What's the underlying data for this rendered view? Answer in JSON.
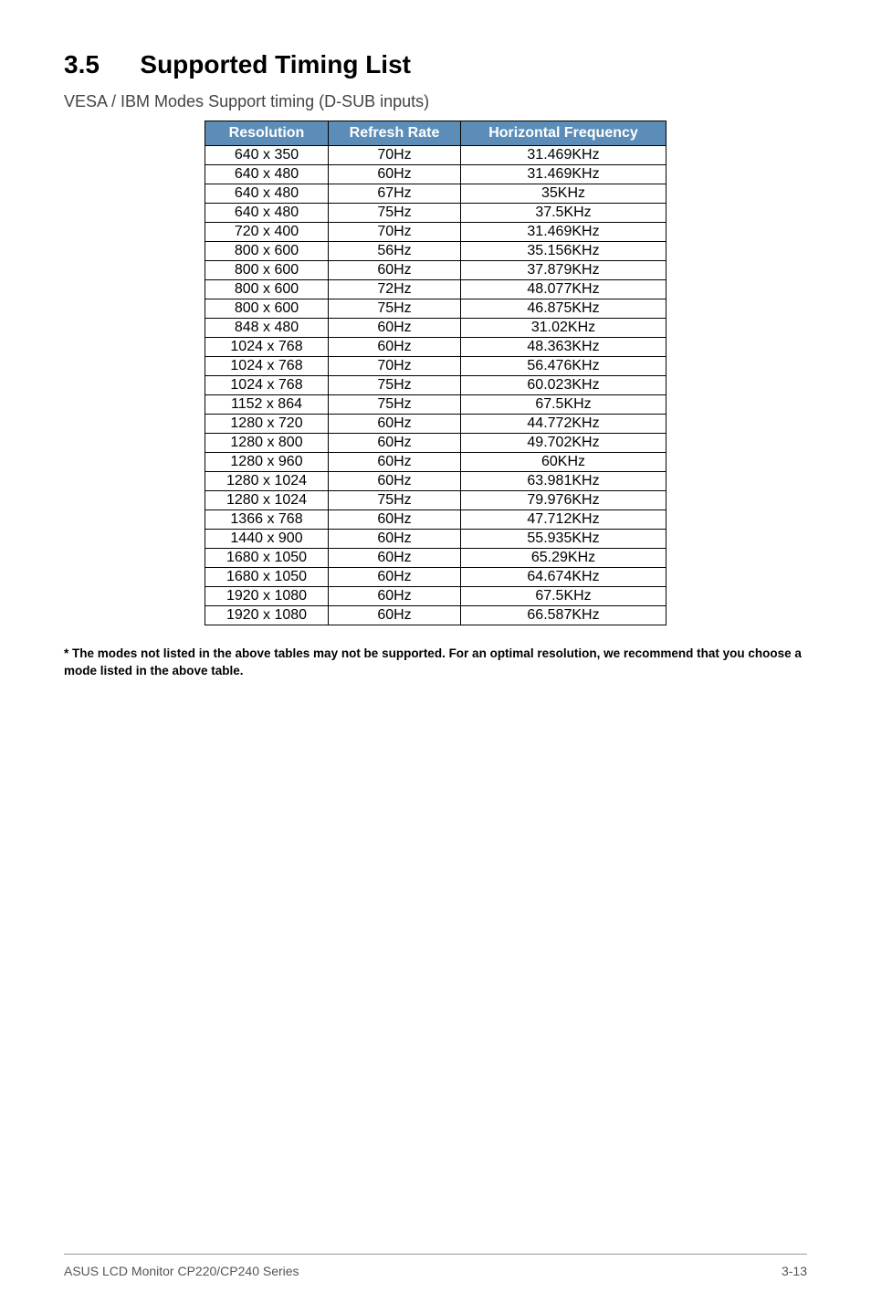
{
  "section": {
    "number": "3.5",
    "title": "Supported Timing List"
  },
  "subtitle": "VESA / IBM Modes Support timing (D-SUB inputs)",
  "table": {
    "columns": [
      "Resolution",
      "Refresh Rate",
      "Horizontal Frequency"
    ],
    "header_bg": "#5b8db8",
    "header_color": "#ffffff",
    "border_color": "#000000",
    "cell_fontsize": 16,
    "rows": [
      [
        "640 x 350",
        "70Hz",
        "31.469KHz"
      ],
      [
        "640 x 480",
        "60Hz",
        "31.469KHz"
      ],
      [
        "640 x 480",
        "67Hz",
        "35KHz"
      ],
      [
        "640 x 480",
        "75Hz",
        "37.5KHz"
      ],
      [
        "720 x 400",
        "70Hz",
        "31.469KHz"
      ],
      [
        "800 x 600",
        "56Hz",
        "35.156KHz"
      ],
      [
        "800 x 600",
        "60Hz",
        "37.879KHz"
      ],
      [
        "800 x 600",
        "72Hz",
        "48.077KHz"
      ],
      [
        "800 x 600",
        "75Hz",
        "46.875KHz"
      ],
      [
        "848 x 480",
        "60Hz",
        "31.02KHz"
      ],
      [
        "1024 x 768",
        "60Hz",
        "48.363KHz"
      ],
      [
        "1024 x 768",
        "70Hz",
        "56.476KHz"
      ],
      [
        "1024 x 768",
        "75Hz",
        "60.023KHz"
      ],
      [
        "1152 x 864",
        "75Hz",
        "67.5KHz"
      ],
      [
        "1280 x 720",
        "60Hz",
        "44.772KHz"
      ],
      [
        "1280 x 800",
        "60Hz",
        "49.702KHz"
      ],
      [
        "1280 x 960",
        "60Hz",
        "60KHz"
      ],
      [
        "1280 x 1024",
        "60Hz",
        "63.981KHz"
      ],
      [
        "1280 x 1024",
        "75Hz",
        "79.976KHz"
      ],
      [
        "1366 x 768",
        "60Hz",
        "47.712KHz"
      ],
      [
        "1440 x 900",
        "60Hz",
        "55.935KHz"
      ],
      [
        "1680 x 1050",
        "60Hz",
        "65.29KHz"
      ],
      [
        "1680 x 1050",
        "60Hz",
        "64.674KHz"
      ],
      [
        "1920 x 1080",
        "60Hz",
        "67.5KHz"
      ],
      [
        "1920 x 1080",
        "60Hz",
        "66.587KHz"
      ]
    ]
  },
  "footnote": "* The modes not listed in the above tables may not be supported. For an optimal resolution, we recommend that you choose a mode listed in the above table.",
  "footer": {
    "left": "ASUS LCD Monitor CP220/CP240 Series",
    "right": "3-13"
  }
}
